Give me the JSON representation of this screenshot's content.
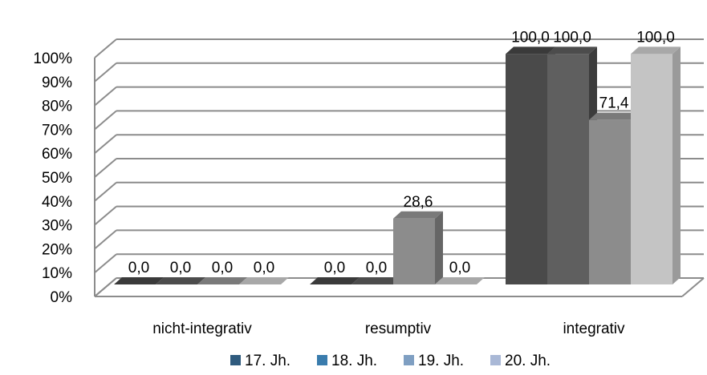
{
  "chart_data": {
    "type": "bar",
    "categories": [
      "nicht-integrativ",
      "resumptiv",
      "integrativ"
    ],
    "series": [
      {
        "name": "17. Jh.",
        "values": [
          0.0,
          0.0,
          100.0
        ],
        "labels": [
          "0,0",
          "0,0",
          "100,0"
        ]
      },
      {
        "name": "18. Jh.",
        "values": [
          0.0,
          0.0,
          100.0
        ],
        "labels": [
          "0,0",
          "0,0",
          "100,0"
        ]
      },
      {
        "name": "19. Jh.",
        "values": [
          0.0,
          28.6,
          71.4
        ],
        "labels": [
          "0,0",
          "28,6",
          "71,4"
        ]
      },
      {
        "name": "20. Jh.",
        "values": [
          0.0,
          0.0,
          100.0
        ],
        "labels": [
          "0,0",
          "0,0",
          "100,0"
        ]
      }
    ],
    "y_ticks": [
      "0%",
      "10%",
      "20%",
      "30%",
      "40%",
      "50%",
      "60%",
      "70%",
      "80%",
      "90%",
      "100%"
    ],
    "ylim": [
      0,
      100
    ],
    "grid": true,
    "legend_position": "bottom",
    "style": "3d-clustered-column"
  },
  "colors": {
    "legend": [
      "#2f5b7e",
      "#3a7cad",
      "#7f9fc2",
      "#a9b8d6"
    ],
    "front": [
      "#4a4a4a",
      "#5f5f5f",
      "#8c8c8c",
      "#c4c4c4"
    ],
    "top": [
      "#3a3a3a",
      "#4c4c4c",
      "#7a7a7a",
      "#a8a8a8"
    ],
    "side": [
      "#2c2c2c",
      "#3c3c3c",
      "#666666",
      "#9a9a9a"
    ],
    "grid": "#8c8c8c"
  }
}
